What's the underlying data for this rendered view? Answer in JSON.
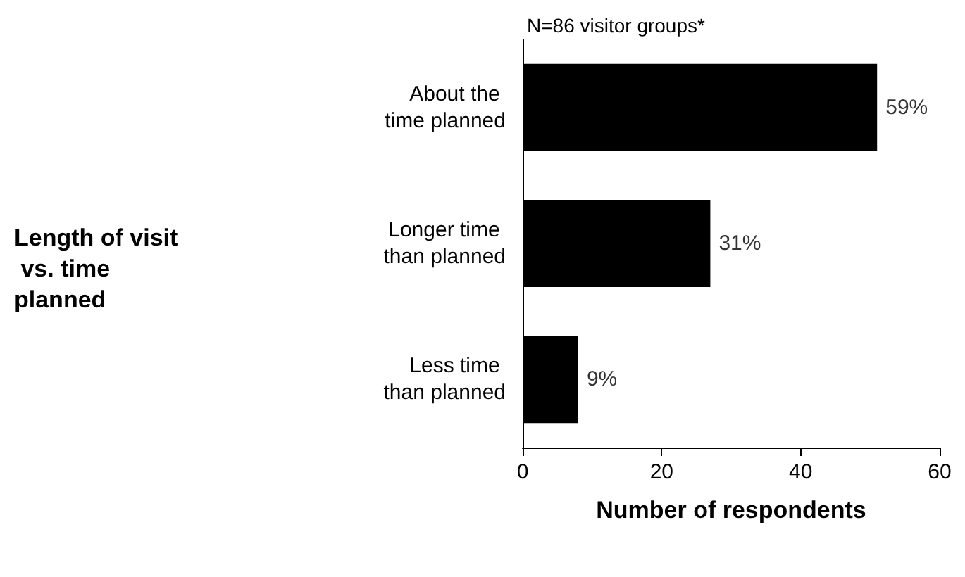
{
  "chart_data": {
    "type": "bar",
    "orientation": "horizontal",
    "title": "N=86 visitor groups*",
    "xlabel": "Number of respondents",
    "categories": [
      "About the time planned",
      "Longer time than planned",
      "Less time than planned"
    ],
    "values": [
      51,
      27,
      8
    ],
    "color": "#000000",
    "annotations": [
      "Length of visit vs. time planned",
      {
        "text": "59%",
        "x": 51,
        "y": "About the time planned"
      },
      {
        "text": "31%",
        "x": 27,
        "y": "Longer time than planned"
      },
      {
        "text": "9%",
        "x": 8,
        "y": "Less time than planned"
      }
    ],
    "xlim": [
      0,
      60
    ],
    "xticks": [
      0,
      20,
      40,
      60
    ],
    "grid": false
  }
}
